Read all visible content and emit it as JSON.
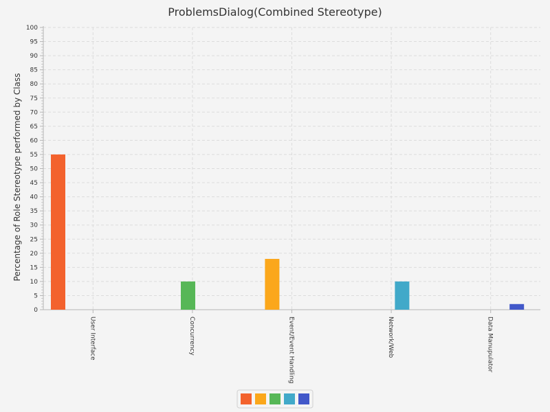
{
  "chart_data": {
    "type": "bar",
    "title": "ProblemsDialog(Combined Stereotype)",
    "xlabel": "",
    "ylabel": "Percentage of Role Stereotype performed by Class",
    "ylim": [
      0,
      100
    ],
    "ytick_step": 5,
    "grid": true,
    "legend_placement": "bottom-center",
    "categories": [
      "User Interface",
      "Concurrency",
      "Event/Event Handling",
      "Network/Web",
      "Data Manupulator"
    ],
    "series": [
      {
        "color": "#f3622d",
        "values": [
          55,
          0,
          0,
          0,
          0
        ]
      },
      {
        "color": "#fba71b",
        "values": [
          0,
          0,
          18,
          0,
          0
        ]
      },
      {
        "color": "#57b757",
        "values": [
          0,
          10,
          0,
          0,
          0
        ]
      },
      {
        "color": "#41a9c9",
        "values": [
          0,
          0,
          0,
          10,
          0
        ]
      },
      {
        "color": "#4258c9",
        "values": [
          0,
          0,
          0,
          0,
          2
        ]
      }
    ]
  }
}
